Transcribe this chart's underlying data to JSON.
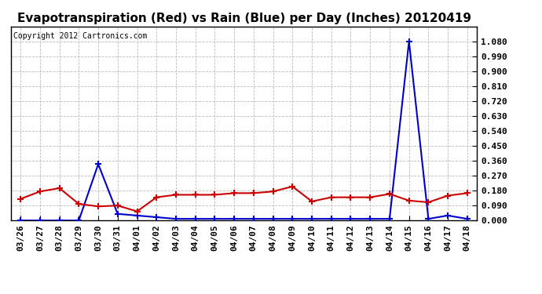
{
  "title": "Evapotranspiration (Red) vs Rain (Blue) per Day (Inches) 20120419",
  "copyright": "Copyright 2012 Cartronics.com",
  "dates": [
    "03/26",
    "03/27",
    "03/28",
    "03/29",
    "03/30",
    "03/31",
    "04/01",
    "04/02",
    "04/03",
    "04/04",
    "04/05",
    "04/06",
    "04/07",
    "04/08",
    "04/09",
    "04/10",
    "04/11",
    "04/12",
    "04/13",
    "04/14",
    "04/15",
    "04/16",
    "04/17",
    "04/18"
  ],
  "et_red": [
    0.13,
    0.175,
    0.195,
    0.1,
    0.085,
    0.09,
    0.055,
    0.14,
    0.155,
    0.155,
    0.155,
    0.165,
    0.165,
    0.175,
    0.205,
    0.115,
    0.14,
    0.14,
    0.14,
    0.16,
    0.12,
    0.11,
    0.15,
    0.165
  ],
  "rain_blue": [
    0.0,
    0.0,
    0.0,
    0.0,
    0.34,
    0.04,
    0.03,
    0.02,
    0.01,
    0.01,
    0.01,
    0.01,
    0.01,
    0.01,
    0.01,
    0.01,
    0.01,
    0.01,
    0.01,
    0.01,
    1.08,
    0.01,
    0.03,
    0.01
  ],
  "ylim": [
    0.0,
    1.17
  ],
  "yticks": [
    0.0,
    0.09,
    0.18,
    0.27,
    0.36,
    0.45,
    0.54,
    0.63,
    0.72,
    0.81,
    0.9,
    0.99,
    1.08
  ],
  "et_color": "#cc0000",
  "rain_color": "#0000cc",
  "grid_color": "#bbbbbb",
  "bg_color": "#ffffff",
  "title_fontsize": 11,
  "copyright_fontsize": 7,
  "tick_fontsize": 8,
  "figsize": [
    6.9,
    3.75
  ],
  "dpi": 100
}
